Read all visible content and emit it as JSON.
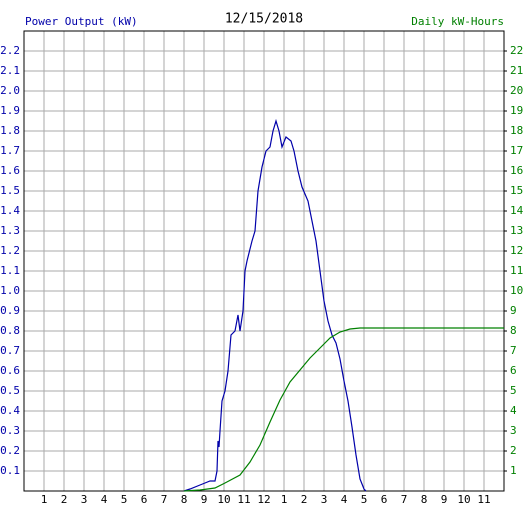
{
  "chart_data": {
    "type": "line",
    "title": "12/15/2018",
    "ylabel": "Power Output (kW)",
    "y2label": "Daily kW-Hours",
    "ylabel_color": "#0000aa",
    "y2label_color": "#008000",
    "grid": true,
    "xlim": [
      0,
      24
    ],
    "xticks": [
      1,
      2,
      3,
      4,
      5,
      6,
      7,
      8,
      9,
      10,
      11,
      12,
      {
        "value": 13,
        "label": "1"
      },
      {
        "value": 14,
        "label": "2"
      },
      {
        "value": 15,
        "label": "3"
      },
      {
        "value": 16,
        "label": "4"
      },
      {
        "value": 17,
        "label": "5"
      },
      {
        "value": 18,
        "label": "6"
      },
      {
        "value": 19,
        "label": "7"
      },
      {
        "value": 20,
        "label": "8"
      },
      {
        "value": 21,
        "label": "9"
      },
      {
        "value": 22,
        "label": "10"
      },
      {
        "value": 23,
        "label": "11"
      }
    ],
    "ylim": [
      0,
      2.3
    ],
    "yticks": [
      0.1,
      0.2,
      0.3,
      0.4,
      0.5,
      0.6,
      0.7,
      0.8,
      0.9,
      {
        "value": 1,
        "label": "1.0"
      },
      1.1,
      1.2,
      1.3,
      1.4,
      1.5,
      1.6,
      1.7,
      1.8,
      1.9,
      {
        "value": 2,
        "label": "2.0"
      },
      2.1,
      2.2
    ],
    "y2lim": [
      0,
      23
    ],
    "y2ticks": [
      1,
      2,
      3,
      4,
      5,
      6,
      7,
      8,
      9,
      10,
      11,
      12,
      13,
      14,
      15,
      16,
      17,
      18,
      19,
      20,
      21,
      22
    ],
    "series": [
      {
        "color": "#0000aa",
        "x": [
          8.0,
          8.3,
          8.8,
          9.05,
          9.3,
          9.55,
          9.65,
          9.7,
          9.75,
          9.8,
          9.9,
          10.05,
          10.2,
          10.35,
          10.55,
          10.7,
          10.8,
          10.95,
          11.05,
          11.15,
          11.4,
          11.55,
          11.7,
          11.9,
          12.1,
          12.3,
          12.45,
          12.6,
          12.75,
          12.9,
          13.1,
          13.35,
          13.5,
          13.7,
          13.9,
          14.2,
          14.4,
          14.6,
          14.8,
          15.0,
          15.2,
          15.4,
          15.6,
          15.8,
          16.0,
          16.2,
          16.4,
          16.6,
          16.8,
          17.0,
          17.1
        ],
        "values": [
          0,
          0.01,
          0.03,
          0.04,
          0.05,
          0.05,
          0.1,
          0.25,
          0.22,
          0.3,
          0.45,
          0.5,
          0.6,
          0.78,
          0.8,
          0.88,
          0.8,
          0.9,
          1.1,
          1.15,
          1.25,
          1.3,
          1.5,
          1.62,
          1.7,
          1.72,
          1.8,
          1.85,
          1.8,
          1.72,
          1.77,
          1.75,
          1.7,
          1.6,
          1.52,
          1.45,
          1.35,
          1.25,
          1.1,
          0.95,
          0.85,
          0.78,
          0.74,
          0.66,
          0.55,
          0.45,
          0.32,
          0.18,
          0.06,
          0.01,
          0
        ]
      },
      {
        "color": "#008000",
        "axis": "y2",
        "x": [
          8.0,
          8.8,
          9.55,
          10.05,
          10.8,
          11.3,
          11.8,
          12.3,
          12.8,
          13.3,
          13.8,
          14.3,
          14.8,
          15.3,
          15.8,
          16.3,
          16.8,
          24
        ],
        "values": [
          0,
          0.05,
          0.15,
          0.4,
          0.8,
          1.45,
          2.3,
          3.45,
          4.55,
          5.45,
          6.05,
          6.65,
          7.15,
          7.65,
          7.95,
          8.1,
          8.15,
          8.15
        ]
      }
    ]
  }
}
